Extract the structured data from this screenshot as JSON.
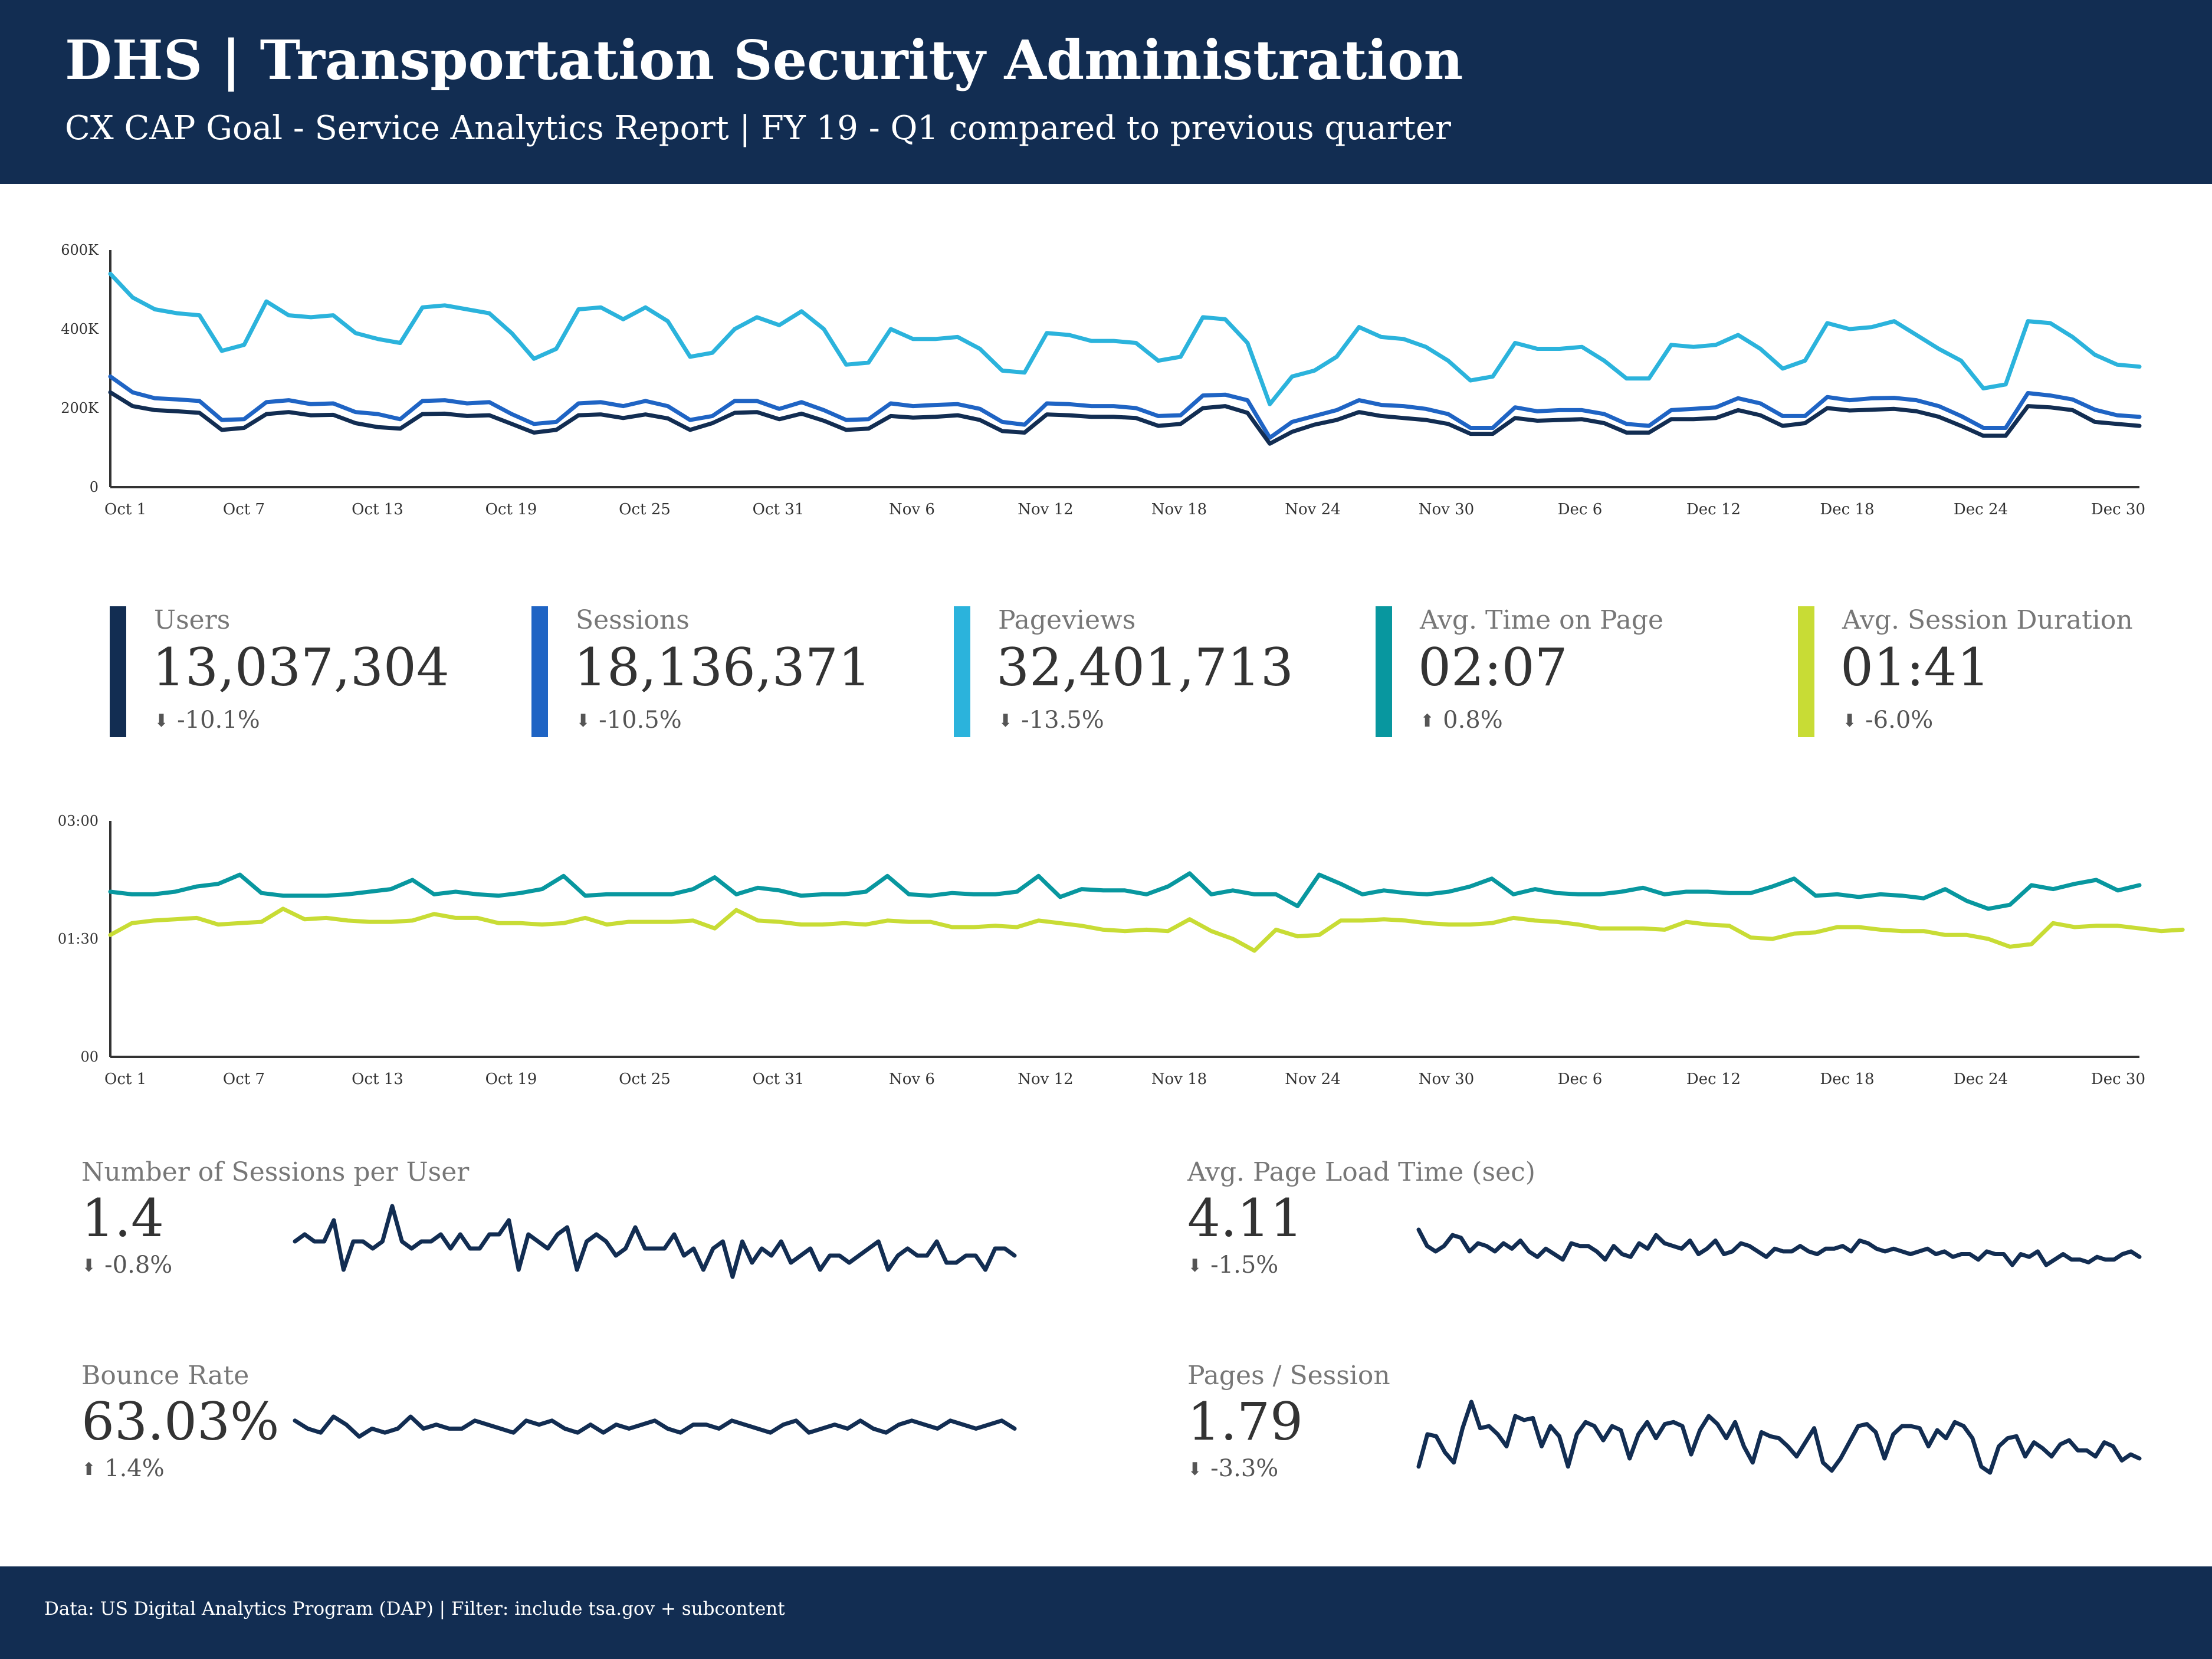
{
  "header": {
    "title": "DHS | Transportation Security Administration",
    "subtitle": "CX CAP Goal - Service Analytics Report | FY 19 - Q1 compared to previous quarter"
  },
  "footer": {
    "text": "Data: US Digital Analytics Program (DAP) | Filter: include tsa.gov + subcontent"
  },
  "colors": {
    "header_bg": "#122d52",
    "users": "#122d52",
    "sessions": "#1f64c4",
    "pageviews": "#2bb3dc",
    "avg_time_on_page": "#08979f",
    "avg_session_duration": "#c8dc35"
  },
  "kpis": [
    {
      "label": "Users",
      "value": "13,037,304",
      "change": "-10.1%",
      "direction": "down",
      "color": "#122d52"
    },
    {
      "label": "Sessions",
      "value": "18,136,371",
      "change": "-10.5%",
      "direction": "down",
      "color": "#1f64c4"
    },
    {
      "label": "Pageviews",
      "value": "32,401,713",
      "change": "-13.5%",
      "direction": "down",
      "color": "#2bb3dc"
    },
    {
      "label": "Avg. Time on Page",
      "value": "02:07",
      "change": "0.8%",
      "direction": "up",
      "color": "#08979f"
    },
    {
      "label": "Avg. Session Duration",
      "value": "01:41",
      "change": "-6.0%",
      "direction": "down",
      "color": "#c8dc35"
    }
  ],
  "metrics": [
    {
      "label": "Number of Sessions per User",
      "value": "1.4",
      "change": "-0.8%",
      "direction": "down",
      "icon": "arrow-down-icon"
    },
    {
      "label": "Avg. Page Load Time (sec)",
      "value": "4.11",
      "change": "-1.5%",
      "direction": "down",
      "icon": "arrow-down-icon"
    },
    {
      "label": "Bounce Rate",
      "value": "63.03%",
      "change": "1.4%",
      "direction": "up",
      "icon": "arrow-up-icon"
    },
    {
      "label": "Pages / Session",
      "value": "1.79",
      "change": "-3.3%",
      "direction": "down",
      "icon": "arrow-down-icon"
    }
  ],
  "chart_data": [
    {
      "type": "line",
      "title": "",
      "xlabel": "",
      "ylabel": "",
      "ylim": [
        0,
        600000
      ],
      "y_tick_labels": [
        "0",
        "200K",
        "400K",
        "600K"
      ],
      "x_tick_labels": [
        "Oct 1",
        "Oct 7",
        "Oct 13",
        "Oct 19",
        "Oct 25",
        "Oct 31",
        "Nov 6",
        "Nov 12",
        "Nov 18",
        "Nov 24",
        "Nov 30",
        "Dec 6",
        "Dec 12",
        "Dec 18",
        "Dec 24",
        "Dec 30"
      ],
      "grid": false,
      "x_start": "Oct 1",
      "x_end": "Dec 31",
      "series": [
        {
          "name": "Pageviews",
          "color": "#2bb3dc",
          "values": [
            540000,
            480000,
            450000,
            440000,
            435000,
            345000,
            360000,
            470000,
            435000,
            430000,
            435000,
            390000,
            375000,
            365000,
            455000,
            460000,
            450000,
            440000,
            390000,
            325000,
            350000,
            450000,
            455000,
            425000,
            455000,
            420000,
            330000,
            340000,
            400000,
            430000,
            410000,
            445000,
            400000,
            310000,
            315000,
            400000,
            375000,
            375000,
            380000,
            350000,
            295000,
            290000,
            390000,
            385000,
            370000,
            370000,
            365000,
            320000,
            330000,
            430000,
            425000,
            365000,
            210000,
            280000,
            295000,
            330000,
            405000,
            380000,
            375000,
            355000,
            320000,
            270000,
            280000,
            365000,
            350000,
            350000,
            355000,
            320000,
            275000,
            275000,
            360000,
            355000,
            360000,
            385000,
            350000,
            300000,
            320000,
            415000,
            400000,
            405000,
            420000,
            385000,
            350000,
            320000,
            250000,
            260000,
            420000,
            415000,
            380000,
            335000,
            310000,
            305000
          ]
        },
        {
          "name": "Sessions",
          "color": "#1f64c4",
          "values": [
            280000,
            240000,
            225000,
            222000,
            218000,
            170000,
            172000,
            215000,
            220000,
            210000,
            212000,
            190000,
            185000,
            172000,
            218000,
            220000,
            212000,
            215000,
            185000,
            160000,
            165000,
            212000,
            215000,
            205000,
            218000,
            205000,
            170000,
            180000,
            218000,
            218000,
            198000,
            215000,
            195000,
            170000,
            172000,
            212000,
            205000,
            208000,
            210000,
            198000,
            165000,
            158000,
            212000,
            210000,
            205000,
            205000,
            200000,
            180000,
            182000,
            232000,
            234000,
            220000,
            125000,
            165000,
            180000,
            195000,
            220000,
            208000,
            205000,
            198000,
            185000,
            150000,
            150000,
            202000,
            192000,
            195000,
            195000,
            185000,
            160000,
            155000,
            195000,
            198000,
            202000,
            225000,
            212000,
            180000,
            180000,
            228000,
            220000,
            225000,
            226000,
            220000,
            205000,
            180000,
            150000,
            150000,
            238000,
            232000,
            222000,
            196000,
            182000,
            178000
          ]
        },
        {
          "name": "Users",
          "color": "#122d52",
          "values": [
            240000,
            205000,
            195000,
            192000,
            188000,
            145000,
            150000,
            185000,
            190000,
            182000,
            183000,
            162000,
            152000,
            148000,
            185000,
            186000,
            180000,
            182000,
            160000,
            138000,
            145000,
            182000,
            184000,
            175000,
            184000,
            174000,
            145000,
            162000,
            188000,
            190000,
            172000,
            186000,
            168000,
            145000,
            148000,
            180000,
            176000,
            178000,
            182000,
            170000,
            142000,
            138000,
            184000,
            182000,
            178000,
            178000,
            175000,
            155000,
            160000,
            200000,
            205000,
            188000,
            110000,
            140000,
            158000,
            170000,
            190000,
            180000,
            175000,
            170000,
            160000,
            135000,
            135000,
            175000,
            168000,
            170000,
            172000,
            162000,
            138000,
            138000,
            172000,
            172000,
            175000,
            195000,
            182000,
            155000,
            162000,
            200000,
            194000,
            196000,
            198000,
            192000,
            178000,
            155000,
            130000,
            130000,
            205000,
            202000,
            195000,
            165000,
            160000,
            155000
          ]
        }
      ]
    },
    {
      "type": "line",
      "title": "",
      "xlabel": "",
      "ylabel": "",
      "ylim": [
        0,
        180
      ],
      "y_unit": "seconds",
      "y_tick_labels": [
        "00",
        "01:30",
        "03:00"
      ],
      "x_tick_labels": [
        "Oct 1",
        "Oct 7",
        "Oct 13",
        "Oct 19",
        "Oct 25",
        "Oct 31",
        "Nov 6",
        "Nov 12",
        "Nov 18",
        "Nov 24",
        "Nov 30",
        "Dec 6",
        "Dec 12",
        "Dec 18",
        "Dec 24",
        "Dec 30"
      ],
      "grid": false,
      "x_start": "Oct 1",
      "x_end": "Dec 31",
      "series": [
        {
          "name": "Avg. Time on Page",
          "color": "#08979f",
          "values": [
            126,
            124,
            124,
            126,
            130,
            132,
            139,
            125,
            123,
            123,
            123,
            124,
            126,
            128,
            135,
            124,
            126,
            124,
            123,
            125,
            128,
            138,
            123,
            124,
            124,
            124,
            124,
            128,
            137,
            124,
            129,
            127,
            123,
            124,
            124,
            126,
            138,
            124,
            123,
            125,
            124,
            124,
            126,
            138,
            122,
            128,
            127,
            127,
            124,
            130,
            140,
            124,
            127,
            124,
            124,
            115,
            139,
            132,
            124,
            127,
            125,
            124,
            126,
            130,
            136,
            124,
            128,
            125,
            124,
            124,
            126,
            129,
            124,
            126,
            126,
            125,
            125,
            130,
            136,
            123,
            124,
            122,
            124,
            123,
            121,
            128,
            119,
            113,
            116,
            131,
            128,
            132,
            135,
            127,
            131
          ]
        },
        {
          "name": "Avg. Session Duration",
          "color": "#c8dc35",
          "values": [
            93,
            102,
            104,
            105,
            106,
            101,
            102,
            103,
            113,
            105,
            106,
            104,
            103,
            103,
            104,
            109,
            106,
            106,
            102,
            102,
            101,
            102,
            106,
            101,
            103,
            103,
            103,
            104,
            98,
            112,
            104,
            103,
            101,
            101,
            102,
            101,
            104,
            103,
            103,
            99,
            99,
            100,
            99,
            104,
            102,
            100,
            97,
            96,
            97,
            96,
            105,
            96,
            90,
            81,
            97,
            92,
            93,
            104,
            104,
            105,
            104,
            102,
            101,
            101,
            102,
            106,
            104,
            103,
            101,
            98,
            98,
            98,
            97,
            103,
            101,
            100,
            91,
            90,
            94,
            95,
            99,
            99,
            97,
            96,
            96,
            93,
            93,
            90,
            84,
            86,
            102,
            99,
            100,
            100,
            98,
            96,
            97
          ]
        }
      ]
    },
    {
      "type": "line",
      "title": "Number of Sessions per User",
      "values": [
        1.42,
        1.43,
        1.42,
        1.42,
        1.45,
        1.38,
        1.42,
        1.42,
        1.41,
        1.42,
        1.47,
        1.42,
        1.41,
        1.42,
        1.42,
        1.43,
        1.41,
        1.43,
        1.41,
        1.41,
        1.43,
        1.43,
        1.45,
        1.38,
        1.43,
        1.42,
        1.41,
        1.43,
        1.44,
        1.38,
        1.42,
        1.43,
        1.42,
        1.4,
        1.41,
        1.44,
        1.41,
        1.41,
        1.41,
        1.43,
        1.4,
        1.41,
        1.38,
        1.41,
        1.42,
        1.37,
        1.42,
        1.39,
        1.41,
        1.4,
        1.42,
        1.39,
        1.4,
        1.41,
        1.38,
        1.4,
        1.4,
        1.39,
        1.4,
        1.41,
        1.42,
        1.38,
        1.4,
        1.41,
        1.4,
        1.4,
        1.42,
        1.39,
        1.39,
        1.4,
        1.4,
        1.38,
        1.41,
        1.41,
        1.4
      ]
    },
    {
      "type": "line",
      "title": "Avg. Page Load Time (sec)",
      "values": [
        4.2,
        4.14,
        4.12,
        4.14,
        4.18,
        4.17,
        4.12,
        4.15,
        4.14,
        4.12,
        4.15,
        4.13,
        4.16,
        4.12,
        4.1,
        4.13,
        4.11,
        4.09,
        4.15,
        4.14,
        4.14,
        4.12,
        4.09,
        4.14,
        4.11,
        4.1,
        4.15,
        4.13,
        4.18,
        4.15,
        4.14,
        4.13,
        4.16,
        4.11,
        4.13,
        4.16,
        4.11,
        4.12,
        4.15,
        4.14,
        4.12,
        4.1,
        4.13,
        4.12,
        4.12,
        4.14,
        4.12,
        4.11,
        4.13,
        4.13,
        4.14,
        4.12,
        4.16,
        4.15,
        4.13,
        4.12,
        4.13,
        4.12,
        4.11,
        4.12,
        4.13,
        4.11,
        4.12,
        4.1,
        4.11,
        4.11,
        4.09,
        4.12,
        4.11,
        4.11,
        4.07,
        4.11,
        4.1,
        4.12,
        4.07,
        4.09,
        4.11,
        4.09,
        4.09,
        4.08,
        4.1,
        4.09,
        4.09,
        4.11,
        4.12,
        4.1
      ]
    },
    {
      "type": "line",
      "title": "Bounce Rate",
      "values": [
        63.2,
        63.0,
        62.9,
        63.3,
        63.1,
        62.8,
        63.0,
        62.9,
        63.0,
        63.3,
        63.0,
        63.1,
        63.0,
        63.0,
        63.2,
        63.1,
        63.0,
        62.9,
        63.2,
        63.1,
        63.2,
        63.0,
        62.9,
        63.1,
        62.9,
        63.1,
        63.0,
        63.1,
        63.2,
        63.0,
        62.9,
        63.1,
        63.1,
        63.0,
        63.2,
        63.1,
        63.0,
        62.9,
        63.1,
        63.2,
        62.9,
        63.0,
        63.1,
        63.0,
        63.2,
        63.0,
        62.9,
        63.1,
        63.2,
        63.1,
        63.0,
        63.2,
        63.1,
        63.0,
        63.1,
        63.2,
        63.0
      ]
    },
    {
      "type": "line",
      "title": "Pages / Session",
      "values": [
        1.6,
        1.76,
        1.75,
        1.67,
        1.62,
        1.79,
        1.92,
        1.79,
        1.8,
        1.76,
        1.7,
        1.85,
        1.83,
        1.84,
        1.7,
        1.8,
        1.75,
        1.6,
        1.76,
        1.82,
        1.8,
        1.73,
        1.8,
        1.78,
        1.64,
        1.76,
        1.82,
        1.74,
        1.81,
        1.82,
        1.8,
        1.66,
        1.78,
        1.85,
        1.81,
        1.74,
        1.82,
        1.7,
        1.62,
        1.77,
        1.75,
        1.74,
        1.7,
        1.65,
        1.72,
        1.79,
        1.62,
        1.58,
        1.64,
        1.72,
        1.8,
        1.81,
        1.77,
        1.64,
        1.76,
        1.8,
        1.8,
        1.79,
        1.7,
        1.78,
        1.74,
        1.82,
        1.8,
        1.74,
        1.6,
        1.57,
        1.7,
        1.74,
        1.75,
        1.65,
        1.72,
        1.69,
        1.65,
        1.71,
        1.73,
        1.68,
        1.68,
        1.65,
        1.72,
        1.7,
        1.63,
        1.66,
        1.64
      ]
    }
  ]
}
